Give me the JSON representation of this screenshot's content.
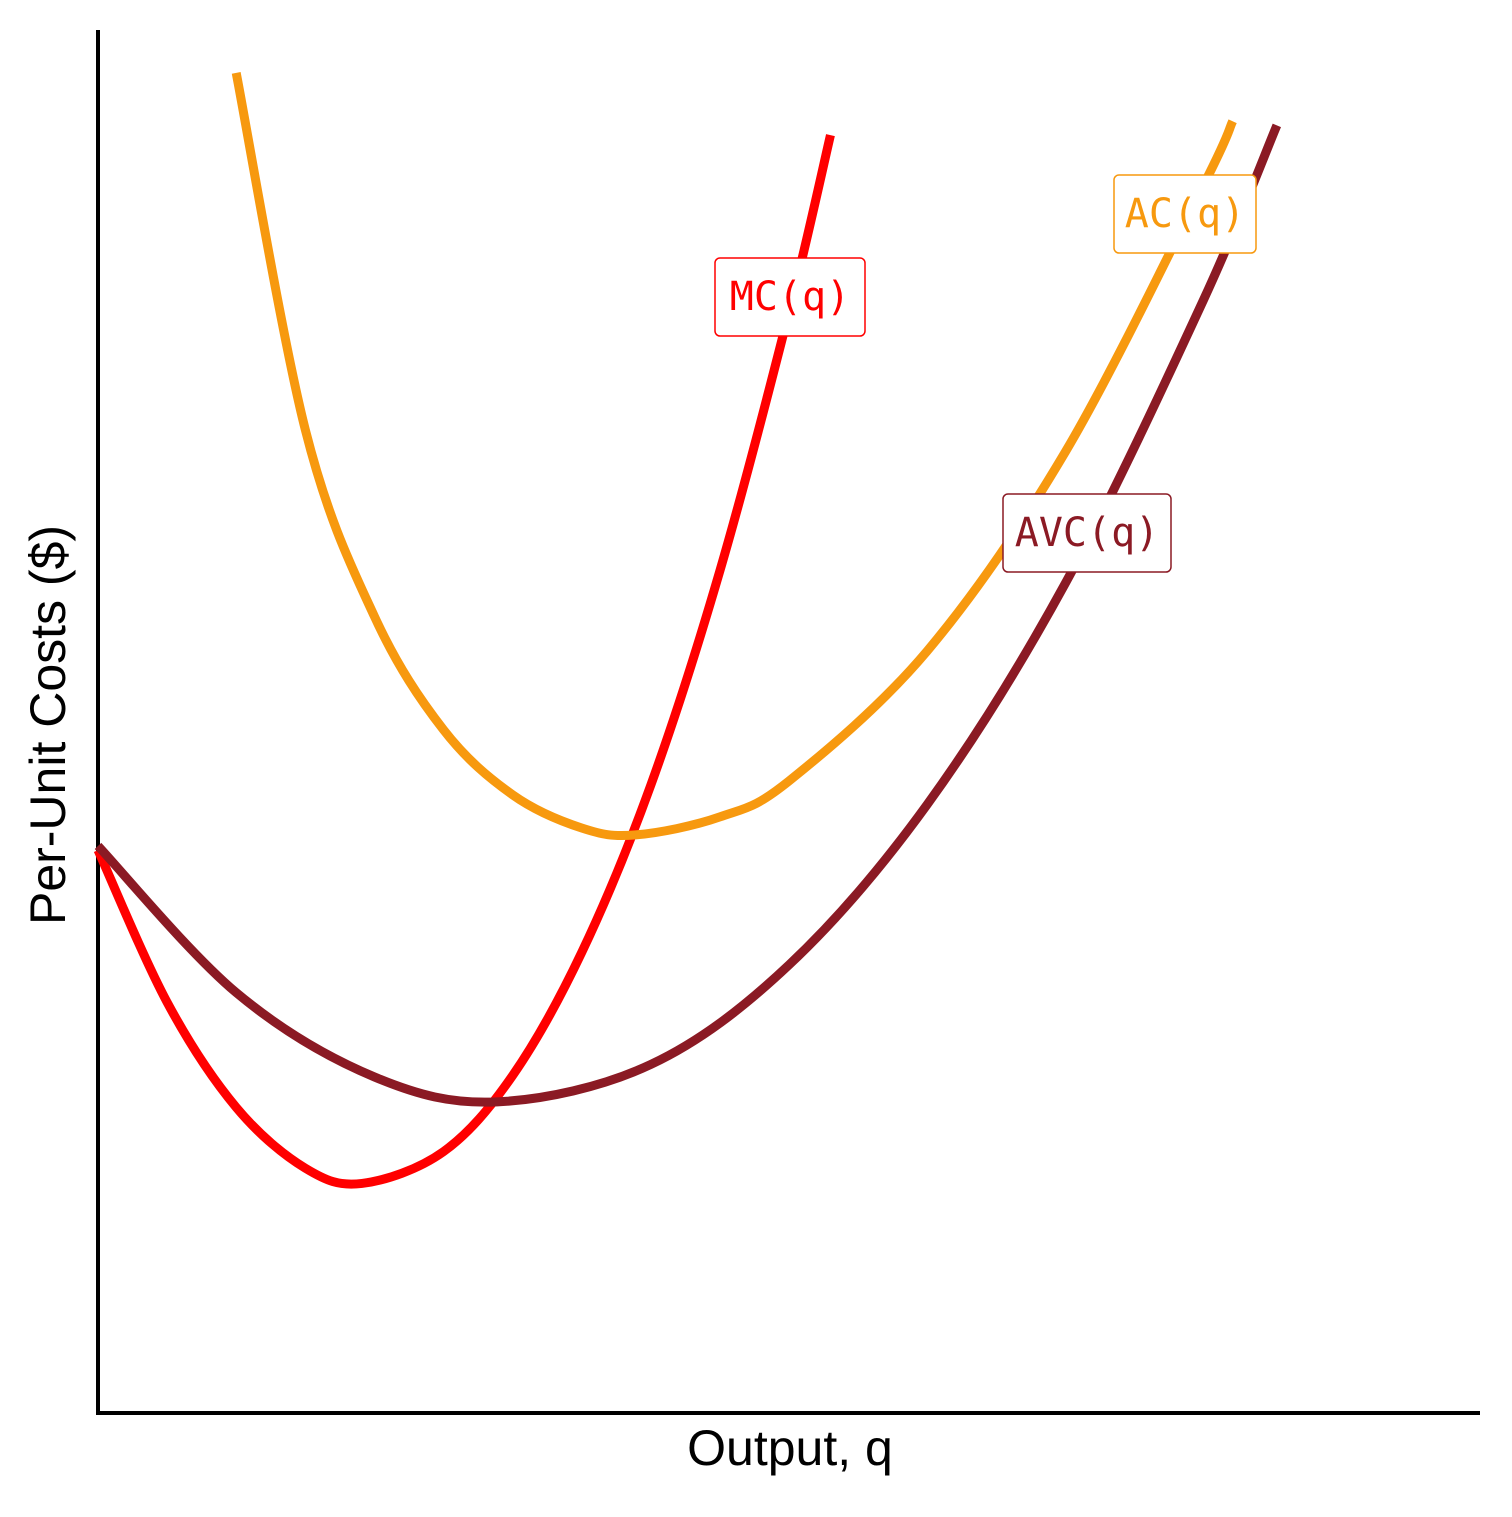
{
  "chart_data": {
    "type": "line",
    "x_label": "Output, q",
    "y_label": "Per-Unit Costs ($)",
    "xlim": [
      0,
      10
    ],
    "ylim": [
      0,
      10
    ],
    "xticks": [],
    "yticks": [],
    "grid": false,
    "series": [
      {
        "name": "MC(q)",
        "color": "#ff0000",
        "x": [
          0,
          0.5,
          1,
          1.5,
          1.91,
          2.5,
          3,
          3.5,
          4,
          4.5,
          5,
          5.3
        ],
        "values": [
          4.07,
          2.97,
          2.21,
          1.77,
          1.66,
          1.89,
          2.44,
          3.33,
          4.54,
          6.09,
          7.96,
          9.24
        ]
      },
      {
        "name": "AC(q)",
        "color": "#f7990f",
        "x": [
          1,
          1.5,
          2,
          2.5,
          3,
          3.5,
          3.89,
          4.5,
          5,
          6,
          7,
          8,
          8.21
        ],
        "values": [
          9.69,
          7.11,
          5.76,
          4.94,
          4.47,
          4.23,
          4.18,
          4.31,
          4.57,
          5.51,
          6.95,
          8.88,
          9.34
        ]
      },
      {
        "name": "AVC(q)",
        "color": "#8b1a24",
        "x": [
          0,
          1,
          2,
          2.89,
          4,
          5,
          6,
          7,
          8,
          8.53
        ],
        "values": [
          4.1,
          3.04,
          2.43,
          2.25,
          2.52,
          3.24,
          4.4,
          6.0,
          8.05,
          9.31
        ]
      }
    ]
  }
}
